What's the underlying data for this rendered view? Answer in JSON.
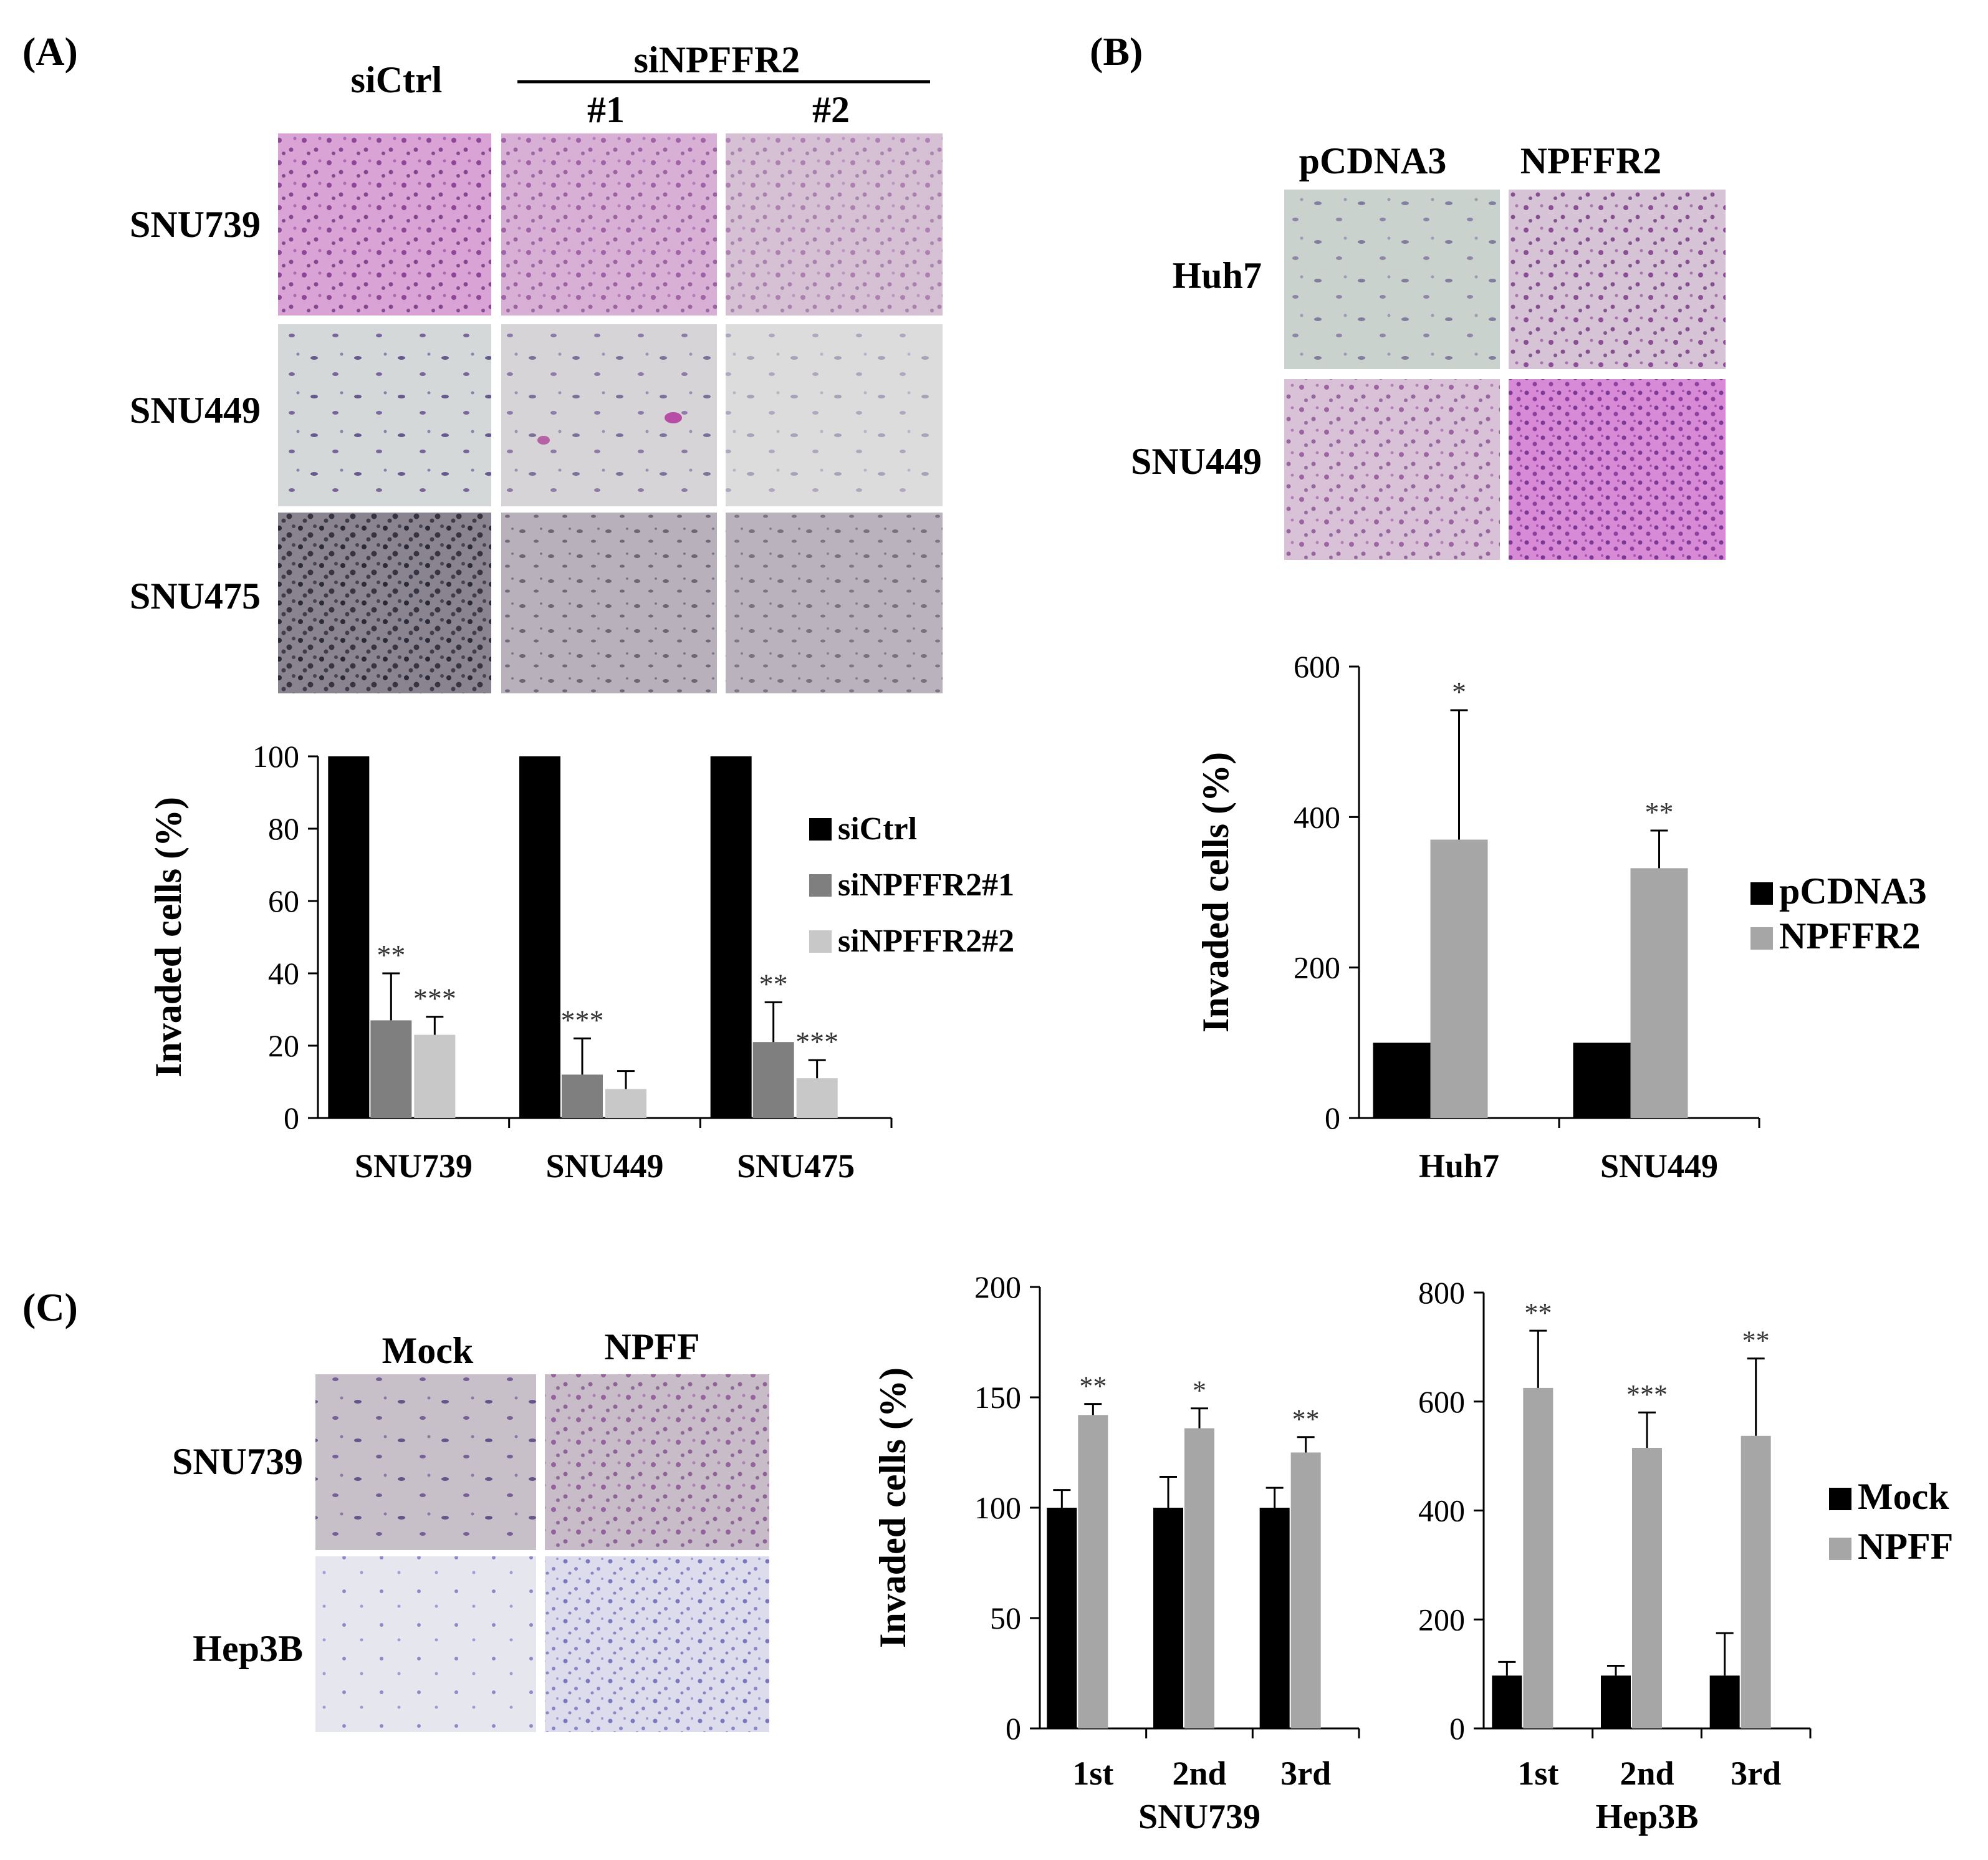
{
  "panels": {
    "A": {
      "letter": "(A)",
      "col_headers": [
        "siCtrl",
        "#1",
        "#2"
      ],
      "group_header": "siNPFFR2",
      "row_labels": [
        "SNU739",
        "SNU449",
        "SNU475"
      ],
      "micrographs": [
        [
          "pink-dense",
          "pink-medium",
          "pink-sparse"
        ],
        [
          "violet-sparse",
          "violet-sparse-magenta",
          "grey-very-sparse"
        ],
        [
          "dark-dense",
          "grey-medium",
          "grey-medium"
        ]
      ]
    },
    "B": {
      "letter": "(B)",
      "col_headers": [
        "pCDNA3",
        "NPFFR2"
      ],
      "row_labels": [
        "Huh7",
        "SNU449"
      ],
      "micrographs": [
        [
          "green-sparse",
          "violet-dense"
        ],
        [
          "violet-medium",
          "magenta-very-dense"
        ]
      ]
    },
    "C": {
      "letter": "(C)",
      "col_headers": [
        "Mock",
        "NPFF"
      ],
      "row_labels": [
        "SNU739",
        "Hep3B"
      ],
      "micrographs": [
        [
          "violet-medium",
          "violet-dense"
        ],
        [
          "blue-sparse",
          "blue-dense"
        ]
      ]
    }
  },
  "colors": {
    "black": "#000000",
    "dark_grey": "#7f7f7f",
    "mid_grey": "#a6a6a6",
    "light_grey": "#c8c8c8",
    "sig": "#333333"
  },
  "chart_data": [
    {
      "id": "A-bar",
      "type": "bar",
      "title": "",
      "ylabel": "Invaded cells (%)",
      "xlabel": "",
      "categories": [
        "SNU739",
        "SNU449",
        "SNU475"
      ],
      "ylim": [
        0,
        100
      ],
      "yticks": [
        "0",
        "20",
        "40",
        "60",
        "80",
        "100"
      ],
      "legend_position": "right",
      "series": [
        {
          "name": "siCtrl",
          "color": "#000000",
          "values": [
            100,
            100,
            100
          ],
          "errors": [
            0,
            0,
            0
          ],
          "sig": [
            "",
            "",
            ""
          ]
        },
        {
          "name": "siNPFFR2#1",
          "color": "#7f7f7f",
          "values": [
            27,
            12,
            21
          ],
          "errors": [
            13,
            10,
            11
          ],
          "sig": [
            "**",
            "***",
            "**"
          ]
        },
        {
          "name": "siNPFFR2#2",
          "color": "#c8c8c8",
          "values": [
            23,
            8,
            11
          ],
          "errors": [
            5,
            5,
            5
          ],
          "sig": [
            "***",
            "",
            "***"
          ]
        }
      ]
    },
    {
      "id": "B-bar",
      "type": "bar",
      "title": "",
      "ylabel": "Invaded cells (%)",
      "xlabel": "",
      "categories": [
        "Huh7",
        "SNU449"
      ],
      "ylim": [
        0,
        600
      ],
      "yticks": [
        "0",
        "200",
        "400",
        "600"
      ],
      "legend_position": "right",
      "series": [
        {
          "name": "pCDNA3",
          "color": "#000000",
          "values": [
            100,
            100
          ],
          "errors": [
            0,
            0
          ],
          "sig": [
            "",
            ""
          ]
        },
        {
          "name": "NPFFR2",
          "color": "#a6a6a6",
          "values": [
            370,
            332
          ],
          "errors": [
            172,
            50
          ],
          "sig": [
            "*",
            "**"
          ]
        }
      ]
    },
    {
      "id": "C-bar-SNU739",
      "type": "bar",
      "title": "",
      "ylabel": "Invaded cells (%)",
      "xlabel": "SNU739",
      "categories": [
        "1st",
        "2nd",
        "3rd"
      ],
      "ylim": [
        0,
        200
      ],
      "yticks": [
        "0",
        "50",
        "100",
        "150",
        "200"
      ],
      "series": [
        {
          "name": "Mock",
          "color": "#000000",
          "values": [
            100,
            100,
            100
          ],
          "errors": [
            8,
            14,
            9
          ],
          "sig": [
            "",
            "",
            ""
          ]
        },
        {
          "name": "NPFF",
          "color": "#a6a6a6",
          "values": [
            142,
            136,
            125
          ],
          "errors": [
            5,
            9,
            7
          ],
          "sig": [
            "**",
            "*",
            "**"
          ]
        }
      ]
    },
    {
      "id": "C-bar-Hep3B",
      "type": "bar",
      "title": "",
      "ylabel": "",
      "xlabel": "Hep3B",
      "categories": [
        "1st",
        "2nd",
        "3rd"
      ],
      "ylim": [
        0,
        800
      ],
      "yticks": [
        "0",
        "200",
        "400",
        "600",
        "800"
      ],
      "legend_position": "right",
      "series": [
        {
          "name": "Mock",
          "color": "#000000",
          "values": [
            97,
            97,
            97
          ],
          "errors": [
            25,
            18,
            78
          ],
          "sig": [
            "",
            "",
            ""
          ]
        },
        {
          "name": "NPFF",
          "color": "#a6a6a6",
          "values": [
            625,
            515,
            537
          ],
          "errors": [
            105,
            65,
            142
          ],
          "sig": [
            "**",
            "***",
            "**"
          ]
        }
      ]
    }
  ]
}
